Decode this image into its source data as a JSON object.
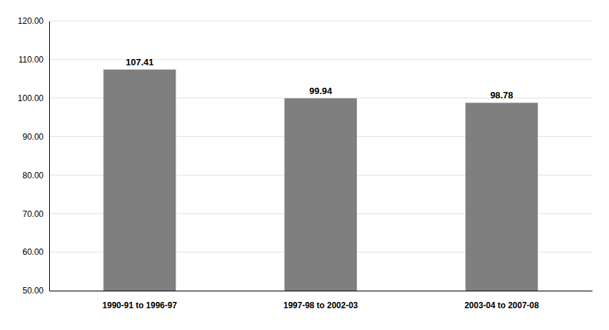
{
  "chart_data": {
    "type": "bar",
    "categories": [
      "1990-91 to 1996-97",
      "1997-98 to 2002-03",
      "2003-04 to 2007-08"
    ],
    "values": [
      107.41,
      99.94,
      98.78
    ],
    "color": "#7f7f7f",
    "ylim": [
      50.0,
      120.0
    ],
    "yticks": [
      {
        "value": 50.0,
        "label": "50.00"
      },
      {
        "value": 60.0,
        "label": "60.00"
      },
      {
        "value": 70.0,
        "label": "70.00"
      },
      {
        "value": 80.0,
        "label": "80.00"
      },
      {
        "value": 90.0,
        "label": "90.00"
      },
      {
        "value": 100.0,
        "label": "100.00"
      },
      {
        "value": 110.0,
        "label": "110.00"
      },
      {
        "value": 120.0,
        "label": "120.00"
      }
    ],
    "grid": true,
    "data_labels": true
  }
}
